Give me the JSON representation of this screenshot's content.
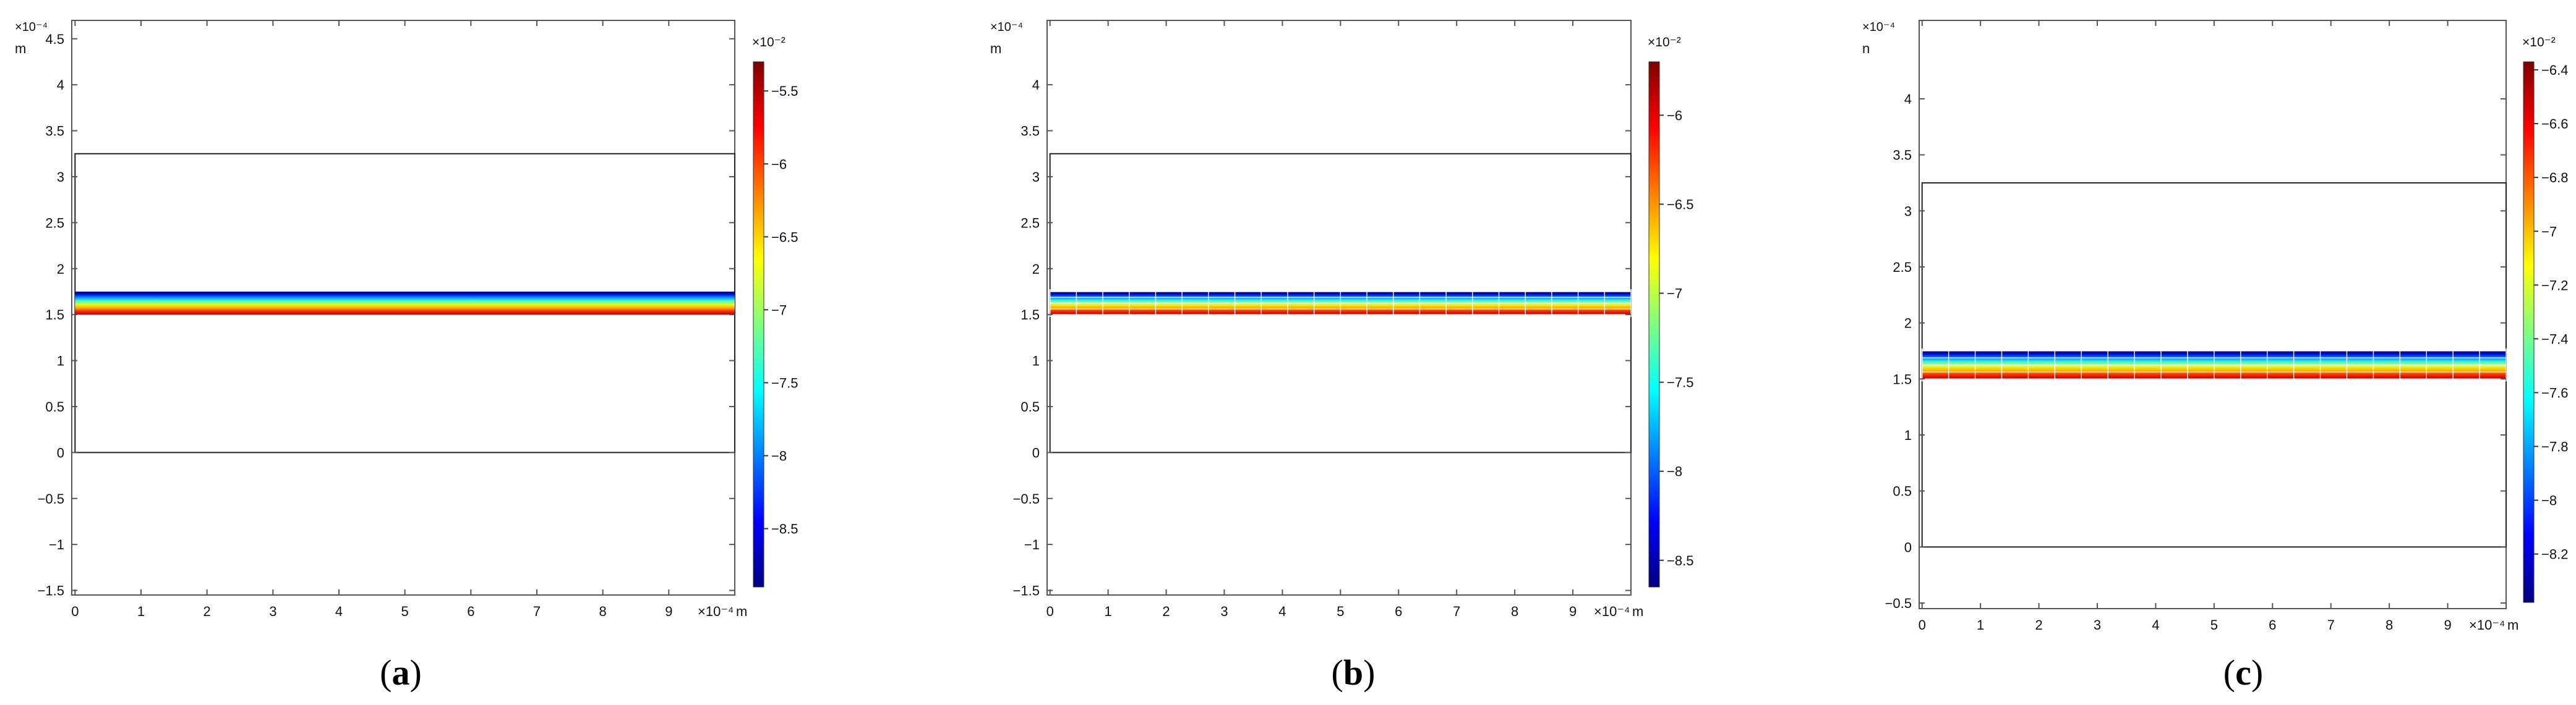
{
  "chart_data": [
    {
      "type": "heatmap",
      "caption": "(a)",
      "x_unit": "m",
      "x_exponent": "×10⁻⁴",
      "y_unit": "m",
      "y_exponent": "×10⁻⁴",
      "xlim": [
        -0.05,
        10.0
      ],
      "ylim": [
        -1.55,
        4.7
      ],
      "x_ticks": [
        0,
        1,
        2,
        3,
        4,
        5,
        6,
        7,
        8,
        9
      ],
      "y_ticks": [
        -1.5,
        -1,
        -0.5,
        0,
        0.5,
        1,
        1.5,
        2,
        2.5,
        3,
        3.5,
        4,
        4.5
      ],
      "domain_rect": {
        "x": [
          0,
          10
        ],
        "y": [
          0,
          3.25
        ]
      },
      "field_band": {
        "y_bottom": 1.5,
        "y_top": 1.75,
        "bottom_color": "#aa0000",
        "top_color": "#00007f"
      },
      "mesh_lines": false,
      "colorbar": {
        "exponent": "×10⁻²",
        "range": [
          -8.9,
          -5.3
        ],
        "ticks": [
          -8.5,
          -8,
          -7.5,
          -7,
          -6.5,
          -6,
          -5.5
        ]
      }
    },
    {
      "type": "heatmap",
      "caption": "(b)",
      "x_unit": "m",
      "x_exponent": "×10⁻⁴",
      "y_unit": "m",
      "y_exponent": "×10⁻⁴",
      "xlim": [
        -0.05,
        10.0
      ],
      "ylim": [
        -1.55,
        4.7
      ],
      "x_ticks": [
        0,
        1,
        2,
        3,
        4,
        5,
        6,
        7,
        8,
        9
      ],
      "y_ticks": [
        -1.5,
        -1,
        -0.5,
        0,
        0.5,
        1,
        1.5,
        2,
        2.5,
        3,
        3.5,
        4
      ],
      "domain_rect": {
        "x": [
          0,
          10
        ],
        "y": [
          0,
          3.25
        ]
      },
      "field_band": {
        "y_bottom": 1.5,
        "y_top": 1.75,
        "bottom_color": "#aa0000",
        "top_color": "#00007f"
      },
      "mesh_lines": true,
      "colorbar": {
        "exponent": "×10⁻²",
        "range": [
          -8.65,
          -5.7
        ],
        "ticks": [
          -8.5,
          -8,
          -7.5,
          -7,
          -6.5,
          -6
        ]
      }
    },
    {
      "type": "heatmap",
      "caption": "(c)",
      "x_unit": "m",
      "x_exponent": "×10⁻⁴",
      "y_unit": "n",
      "y_exponent": "×10⁻⁴",
      "xlim": [
        -0.05,
        10.0
      ],
      "ylim": [
        -0.55,
        4.7
      ],
      "x_ticks": [
        0,
        1,
        2,
        3,
        4,
        5,
        6,
        7,
        8,
        9
      ],
      "y_ticks": [
        -0.5,
        0,
        0.5,
        1,
        1.5,
        2,
        2.5,
        3,
        3.5,
        4
      ],
      "domain_rect": {
        "x": [
          0,
          10
        ],
        "y": [
          0,
          3.25
        ]
      },
      "field_band": {
        "y_bottom": 1.5,
        "y_top": 1.75,
        "bottom_color": "#aa0000",
        "top_color": "#00007f"
      },
      "mesh_lines": true,
      "colorbar": {
        "exponent": "×10⁻²",
        "range": [
          -8.38,
          -6.37
        ],
        "ticks": [
          -8.2,
          -8,
          -7.8,
          -7.6,
          -7.4,
          -7.2,
          -7,
          -6.8,
          -6.6,
          -6.4
        ]
      }
    }
  ],
  "colormap": [
    "#00007f",
    "#0000ff",
    "#007fff",
    "#00ffff",
    "#7fff7f",
    "#ffff00",
    "#ff7f00",
    "#ff0000",
    "#7f0000"
  ]
}
